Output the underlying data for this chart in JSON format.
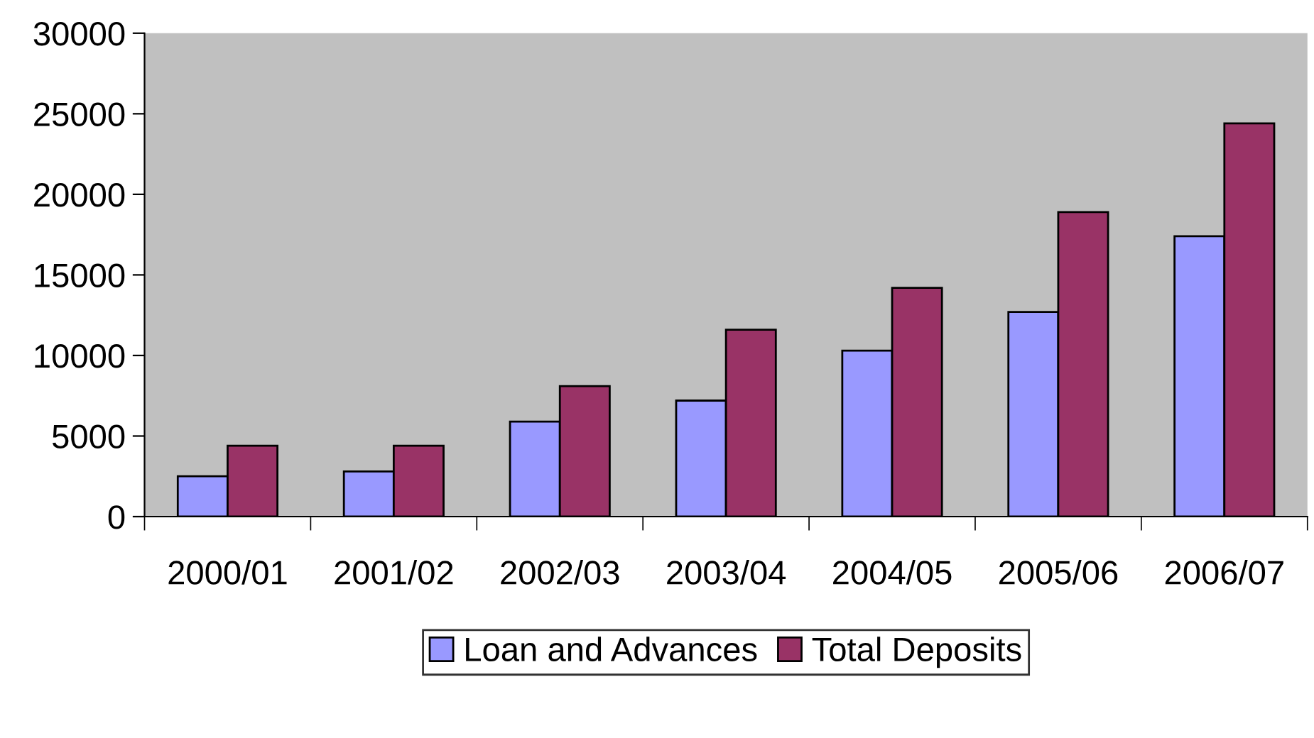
{
  "chart_data": {
    "type": "bar",
    "categories": [
      "2000/01",
      "2001/02",
      "2002/03",
      "2003/04",
      "2004/05",
      "2005/06",
      "2006/07"
    ],
    "series": [
      {
        "name": "Loan and Advances",
        "color": "#9999ff",
        "values": [
          2500,
          2800,
          5900,
          7200,
          10300,
          12700,
          17400
        ]
      },
      {
        "name": "Total Deposits",
        "color": "#993366",
        "values": [
          4400,
          4400,
          8100,
          11600,
          14200,
          18900,
          24400
        ]
      }
    ],
    "ylim": [
      0,
      30000
    ],
    "yticks": [
      0,
      5000,
      10000,
      15000,
      20000,
      25000,
      30000
    ],
    "grid": false,
    "legend": "bottom"
  }
}
